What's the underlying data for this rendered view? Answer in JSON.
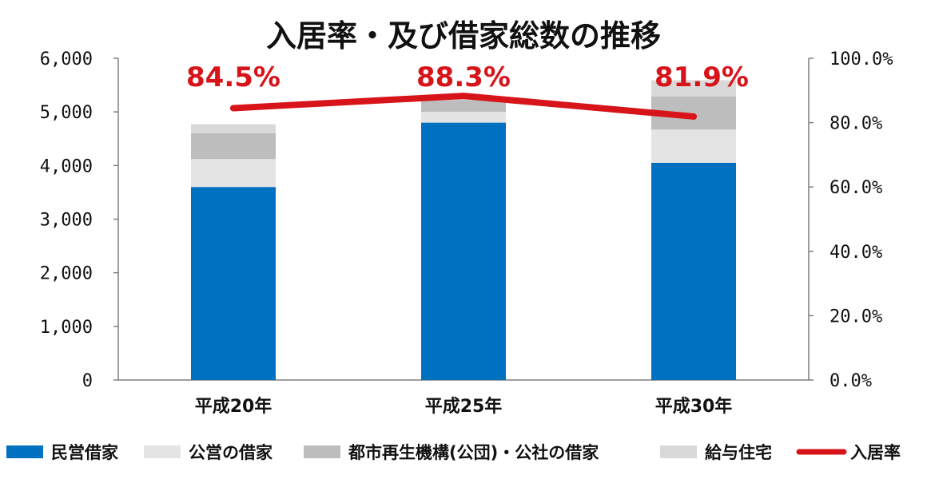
{
  "chart_data": {
    "type": "bar",
    "title": "入居率・及び借家総数の推移",
    "categories": [
      "平成20年",
      "平成25年",
      "平成30年"
    ],
    "y_left": {
      "ylim": [
        0,
        6000
      ],
      "ticks": [
        0,
        1000,
        2000,
        3000,
        4000,
        5000,
        6000
      ],
      "tick_labels": [
        "0",
        "1,000",
        "2,000",
        "3,000",
        "4,000",
        "5,000",
        "6,000"
      ]
    },
    "y_right": {
      "ylim": [
        0,
        100
      ],
      "ticks": [
        0,
        20,
        40,
        60,
        80,
        100
      ],
      "tick_labels": [
        "0.0%",
        "20.0%",
        "40.0%",
        "60.0%",
        "80.0%",
        "100.0%"
      ]
    },
    "series": [
      {
        "name": "民営借家",
        "kind": "bar",
        "stack": true,
        "color": "#0070c0",
        "values": [
          3600,
          4800,
          4050
        ]
      },
      {
        "name": "公営の借家",
        "kind": "bar",
        "stack": true,
        "color": "#e4e4e4",
        "values": [
          520,
          200,
          620
        ]
      },
      {
        "name": "都市再生機構(公団)・公社の借家",
        "kind": "bar",
        "stack": true,
        "color": "#bdbdbd",
        "values": [
          480,
          220,
          620
        ]
      },
      {
        "name": "給与住宅",
        "kind": "bar",
        "stack": true,
        "color": "#d9d9d9",
        "values": [
          170,
          60,
          300
        ]
      },
      {
        "name": "入居率",
        "kind": "line",
        "axis": "right",
        "color": "#d8141b",
        "values": [
          84.5,
          88.3,
          81.9
        ],
        "labels": [
          "84.5%",
          "88.3%",
          "81.9%"
        ]
      }
    ],
    "grid": false,
    "legend": "bottom"
  }
}
